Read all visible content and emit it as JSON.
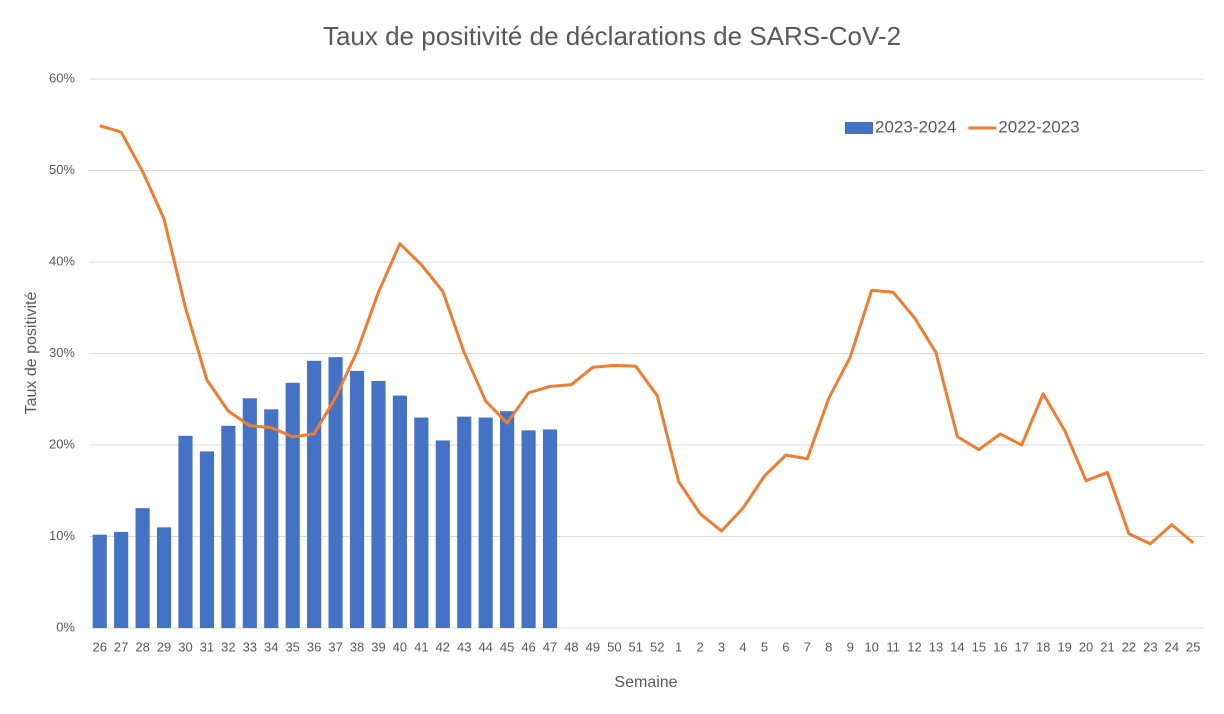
{
  "chart_data": {
    "type": "combo",
    "title": "Taux de positivité de déclarations de SARS-CoV-2",
    "x_label": "Semaine",
    "y_label": "Taux de positivité",
    "categories": [
      "26",
      "27",
      "28",
      "29",
      "30",
      "31",
      "32",
      "33",
      "34",
      "35",
      "36",
      "37",
      "38",
      "39",
      "40",
      "41",
      "42",
      "43",
      "44",
      "45",
      "46",
      "47",
      "48",
      "49",
      "50",
      "51",
      "52",
      "1",
      "2",
      "3",
      "4",
      "5",
      "6",
      "7",
      "8",
      "9",
      "10",
      "11",
      "12",
      "13",
      "14",
      "15",
      "16",
      "17",
      "18",
      "19",
      "20",
      "21",
      "22",
      "23",
      "24",
      "25"
    ],
    "series": [
      {
        "name": "2023-2024",
        "type": "bar",
        "color": "#4472c4",
        "values": [
          10.2,
          10.5,
          13.1,
          11.0,
          21.0,
          19.3,
          22.1,
          25.1,
          23.9,
          26.8,
          29.2,
          29.6,
          28.1,
          27.0,
          25.4,
          23.0,
          20.5,
          23.1,
          23.0,
          23.7,
          21.6,
          21.7,
          null,
          null,
          null,
          null,
          null,
          null,
          null,
          null,
          null,
          null,
          null,
          null,
          null,
          null,
          null,
          null,
          null,
          null,
          null,
          null,
          null,
          null,
          null,
          null,
          null,
          null,
          null,
          null,
          null,
          null
        ]
      },
      {
        "name": "2022-2023",
        "type": "line",
        "color": "#ed7d31",
        "values": [
          54.9,
          54.2,
          49.9,
          44.7,
          35.0,
          27.1,
          23.7,
          22.1,
          21.9,
          20.9,
          21.2,
          25.2,
          30.2,
          36.7,
          42.0,
          39.7,
          36.8,
          30.1,
          24.8,
          22.4,
          25.7,
          26.4,
          26.6,
          28.5,
          28.7,
          28.6,
          25.4,
          16.0,
          12.5,
          10.6,
          13.1,
          16.6,
          18.9,
          18.5,
          25.1,
          29.6,
          36.9,
          36.7,
          33.9,
          30.1,
          20.9,
          19.5,
          21.2,
          20.0,
          25.6,
          21.6,
          16.1,
          17.0,
          10.3,
          9.2,
          11.3,
          9.3
        ]
      }
    ],
    "ylim": [
      0,
      60
    ],
    "yticks": [
      {
        "value": 0,
        "label": "0%"
      },
      {
        "value": 10,
        "label": "10%"
      },
      {
        "value": 20,
        "label": "20%"
      },
      {
        "value": 30,
        "label": "30%"
      },
      {
        "value": 40,
        "label": "40%"
      },
      {
        "value": 50,
        "label": "50%"
      },
      {
        "value": 60,
        "label": "60%"
      }
    ],
    "grid": true,
    "legend": "top-right"
  }
}
